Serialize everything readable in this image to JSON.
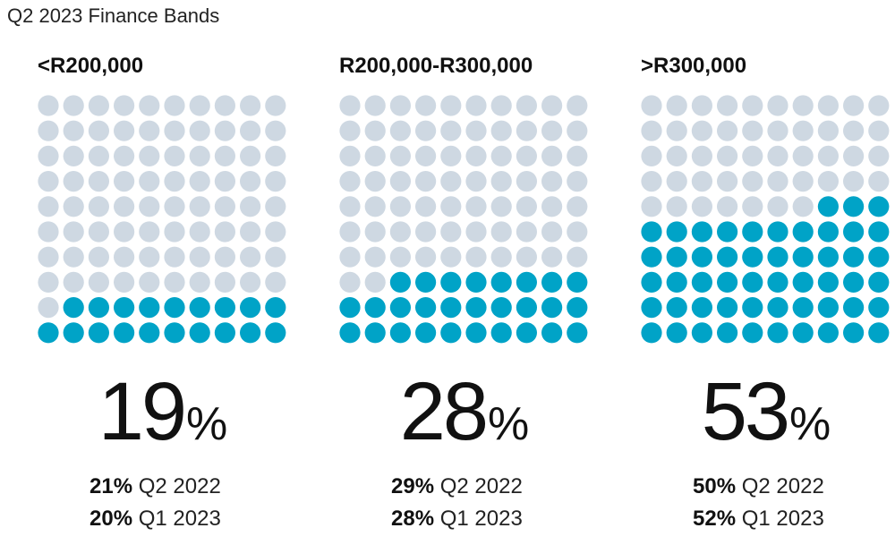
{
  "title": "Q2 2023 Finance Bands",
  "colors": {
    "filled": "#00A3C7",
    "empty": "#CED8E2"
  },
  "chart_data": [
    {
      "type": "waffle",
      "label": "<R200,000",
      "value": 19,
      "value_text": "19",
      "unit": "%",
      "comparisons": [
        {
          "value": "21%",
          "period": "Q2 2022"
        },
        {
          "value": "20%",
          "period": "Q1 2023"
        }
      ]
    },
    {
      "type": "waffle",
      "label": "R200,000-R300,000",
      "value": 28,
      "value_text": "28",
      "unit": "%",
      "comparisons": [
        {
          "value": "29%",
          "period": "Q2 2022"
        },
        {
          "value": "28%",
          "period": "Q1 2023"
        }
      ]
    },
    {
      "type": "waffle",
      "label": ">R300,000",
      "value": 53,
      "value_text": "53",
      "unit": "%",
      "comparisons": [
        {
          "value": "50%",
          "period": "Q2 2022"
        },
        {
          "value": "52%",
          "period": "Q1 2023"
        }
      ]
    }
  ]
}
